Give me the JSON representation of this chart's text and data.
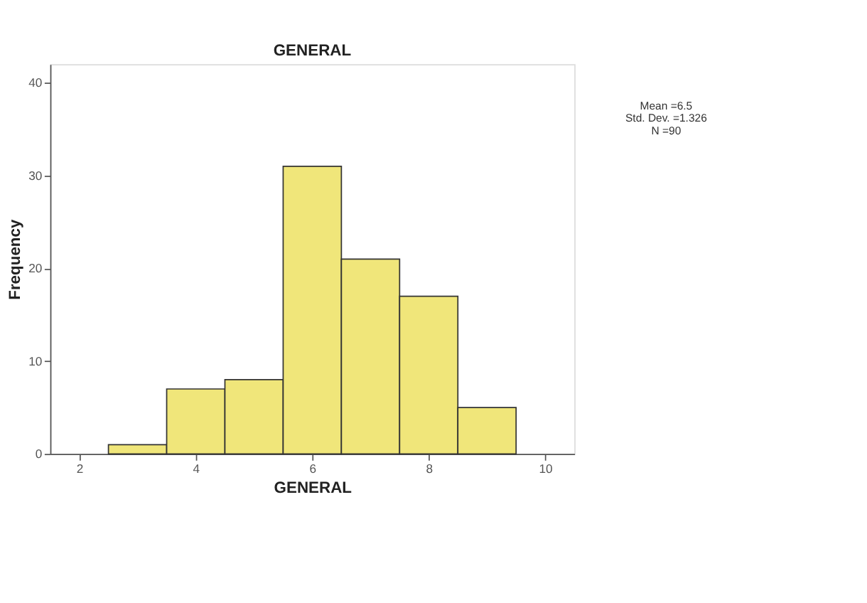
{
  "chart_data": {
    "type": "histogram",
    "title": "GENERAL",
    "xlabel": "GENERAL",
    "ylabel": "Frequency",
    "bins": [
      2.5,
      3.5,
      4.5,
      5.5,
      6.5,
      7.5,
      8.5,
      9.5
    ],
    "values": [
      1,
      7,
      8,
      31,
      21,
      17,
      5
    ],
    "color": "#f0e67a",
    "xlim": [
      1.5,
      10.5
    ],
    "xticks": [
      2,
      4,
      6,
      8,
      10
    ],
    "ylim": [
      0,
      42
    ],
    "yticks": [
      0,
      10,
      20,
      30,
      40
    ],
    "grid": false,
    "annotations": [
      "Mean =6.5",
      "Std. Dev. =1.326",
      "N =90"
    ]
  }
}
